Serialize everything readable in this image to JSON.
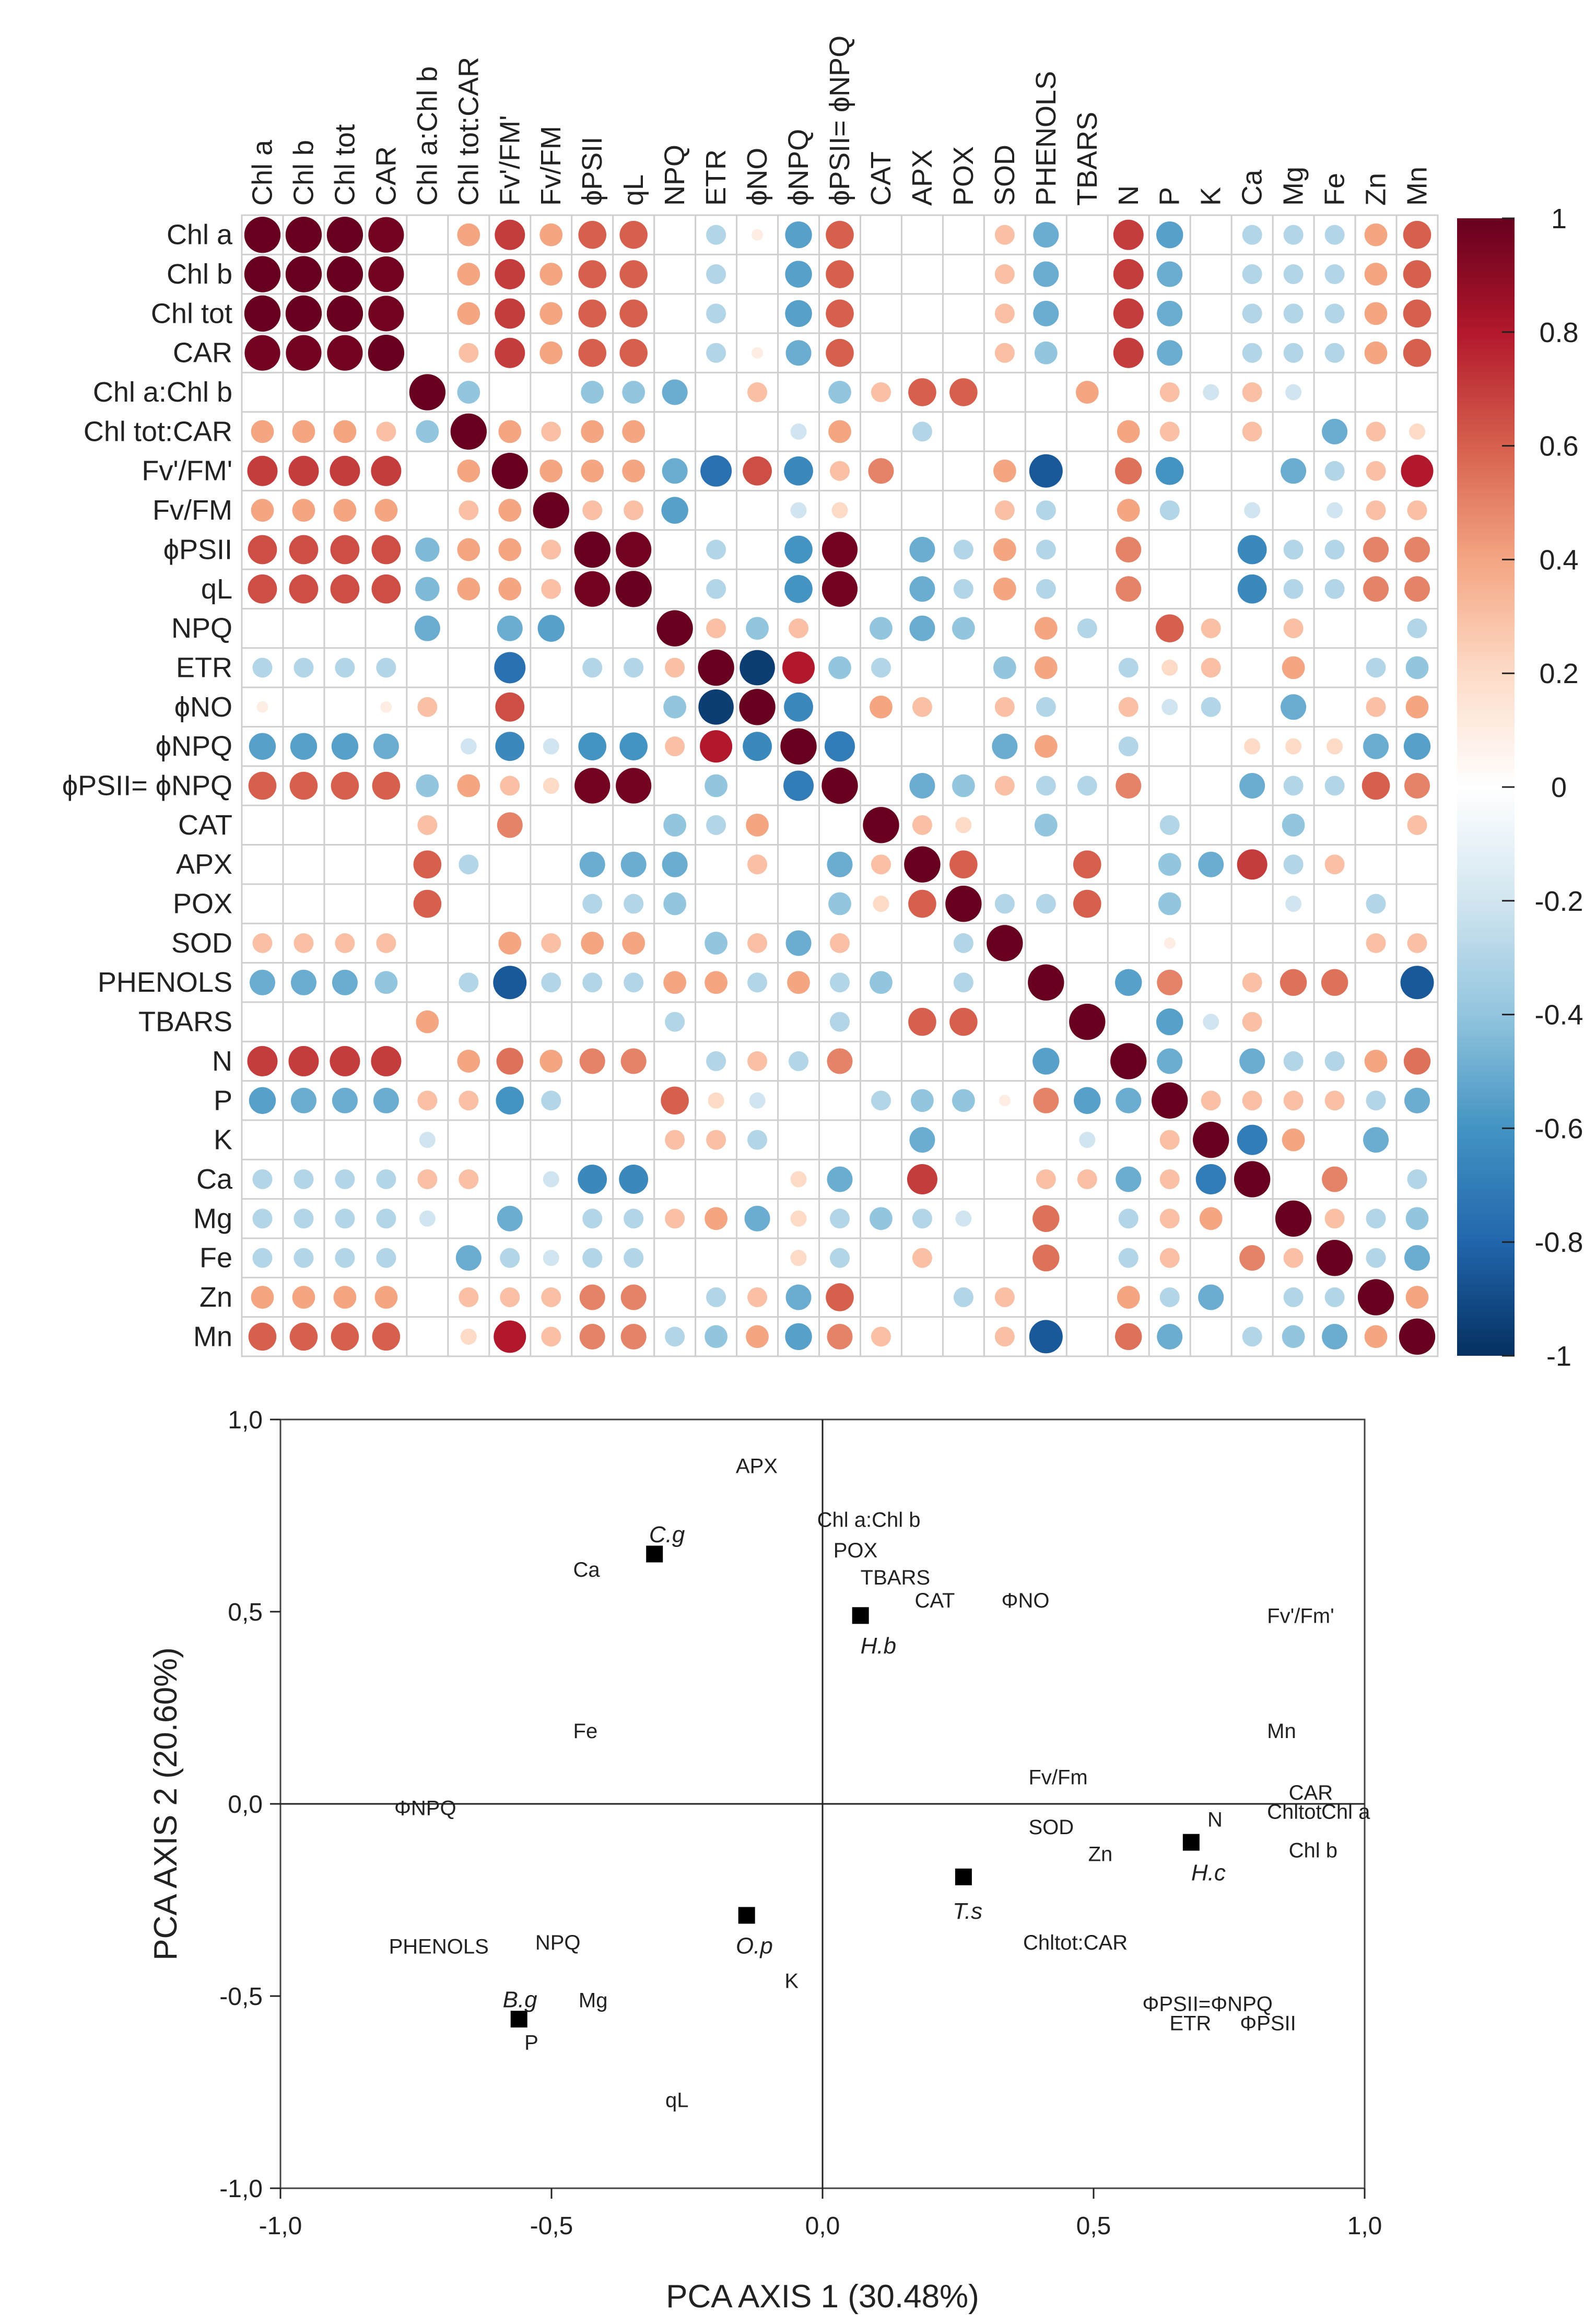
{
  "colors": {
    "scale": [
      "#67001f",
      "#b2182b",
      "#d6604d",
      "#f4a582",
      "#fddbc7",
      "#ffffff",
      "#d1e5f0",
      "#92c5de",
      "#4393c3",
      "#2166ac",
      "#053061"
    ],
    "grid": "#cfcfcf",
    "text": "#222222",
    "treatment_marker": "#000000"
  },
  "chart_data": [
    {
      "type": "heatmap",
      "subtype": "correlation-circles",
      "title": "",
      "variables": [
        "Chl a",
        "Chl b",
        "Chl tot",
        "CAR",
        "Chl a:Chl b",
        "Chl tot:CAR",
        "FV'/FM'",
        "FV/FM",
        "ϕPSII",
        "qL",
        "NPQ",
        "ETR",
        "ϕNO",
        "ϕNPQ",
        "ϕPSII= ϕNPQ",
        "CAT",
        "APX",
        "POX",
        "SOD",
        "PHENOLS",
        "TBARS",
        "N",
        "P",
        "K",
        "Ca",
        "Mg",
        "Fe",
        "Zn",
        "Mn"
      ],
      "row_labels": [
        "Chl a",
        "Chl b",
        "Chl tot",
        "CAR",
        "Chl a:Chl b",
        "Chl tot:CAR",
        "Fv'/FM'",
        "Fv/FM",
        "ϕPSII",
        "qL",
        "NPQ",
        "ETR",
        "ϕNO",
        "ϕNPQ",
        "ϕPSII= ϕNPQ",
        "CAT",
        "APX",
        "POX",
        "SOD",
        "PHENOLS",
        "TBARS",
        "N",
        "P",
        "K",
        "Ca",
        "Mg",
        "Fe",
        "Zn",
        "Mn"
      ],
      "column_labels": [
        "Chl a",
        "Chl b",
        "Chl tot",
        "CAR",
        "Chl a:Chl b",
        "Chl tot:CAR",
        "Fv'/FM'",
        "Fv/FM",
        "ϕPSII",
        "qL",
        "NPQ",
        "ETR",
        "ϕNO",
        "ϕNPQ",
        "ϕPSII= ϕNPQ",
        "CAT",
        "APX",
        "POX",
        "SOD",
        "PHENOLS",
        "TBARS",
        "N",
        "P",
        "K",
        "Ca",
        "Mg",
        "Fe",
        "Zn",
        "Mn"
      ],
      "matrix": [
        [
          1,
          1,
          1,
          0.97,
          0,
          0.4,
          0.7,
          0.4,
          0.6,
          0.6,
          0,
          -0.3,
          0.1,
          -0.55,
          0.6,
          0,
          0,
          0,
          0.3,
          -0.5,
          0,
          0.7,
          -0.55,
          0,
          -0.3,
          -0.3,
          -0.3,
          0.4,
          0.6
        ],
        [
          1,
          1,
          1,
          0.97,
          0,
          0.4,
          0.7,
          0.4,
          0.6,
          0.6,
          0,
          -0.3,
          0,
          -0.55,
          0.6,
          0,
          0,
          0,
          0.3,
          -0.5,
          0,
          0.7,
          -0.5,
          0,
          -0.3,
          -0.3,
          -0.3,
          0.4,
          0.6
        ],
        [
          1,
          1,
          1,
          0.97,
          0,
          0.4,
          0.7,
          0.4,
          0.6,
          0.6,
          0,
          -0.3,
          0,
          -0.55,
          0.6,
          0,
          0,
          0,
          0.3,
          -0.5,
          0,
          0.7,
          -0.5,
          0,
          -0.3,
          -0.3,
          -0.3,
          0.4,
          0.6
        ],
        [
          0.97,
          0.97,
          0.97,
          1,
          0,
          0.3,
          0.7,
          0.4,
          0.6,
          0.6,
          0,
          -0.3,
          0.1,
          -0.5,
          0.6,
          0,
          0,
          0,
          0.3,
          -0.4,
          0,
          0.7,
          -0.5,
          0,
          -0.3,
          -0.3,
          -0.3,
          0.4,
          0.6
        ],
        [
          0,
          0,
          0,
          0,
          1,
          -0.4,
          0,
          0,
          -0.4,
          -0.4,
          -0.5,
          0,
          0.3,
          0,
          -0.4,
          0.3,
          0.6,
          0.6,
          0,
          0,
          0.4,
          0,
          0.3,
          -0.2,
          0.3,
          -0.2,
          0,
          0,
          0
        ],
        [
          0.4,
          0.4,
          0.4,
          0.3,
          -0.4,
          1,
          0.4,
          0.3,
          0.4,
          0.4,
          0,
          0,
          0,
          -0.2,
          0.4,
          0,
          -0.3,
          0,
          0,
          0,
          0,
          0.4,
          0.3,
          0,
          0.3,
          0,
          -0.5,
          0.3,
          0.2
        ],
        [
          0.7,
          0.7,
          0.7,
          0.7,
          0,
          0.4,
          1,
          0.4,
          0.4,
          0.4,
          -0.5,
          -0.75,
          0.65,
          -0.65,
          0.3,
          0.5,
          0,
          0,
          0.4,
          -0.85,
          0,
          0.55,
          -0.6,
          0,
          0,
          -0.5,
          -0.3,
          0.3,
          0.8
        ],
        [
          0.4,
          0.4,
          0.4,
          0.4,
          0,
          0.3,
          0.4,
          1,
          0.3,
          0.3,
          -0.55,
          0,
          0,
          -0.2,
          0.2,
          0,
          0,
          0,
          0.3,
          -0.3,
          0,
          0.4,
          -0.3,
          0,
          -0.2,
          0,
          -0.2,
          0.3,
          0.3
        ],
        [
          0.65,
          0.65,
          0.65,
          0.65,
          -0.45,
          0.4,
          0.4,
          0.3,
          1,
          0.97,
          0,
          -0.3,
          0,
          -0.6,
          0.97,
          0,
          -0.5,
          -0.3,
          0.4,
          -0.3,
          0,
          0.5,
          0,
          0,
          -0.65,
          -0.3,
          -0.3,
          0.5,
          0.5
        ],
        [
          0.65,
          0.65,
          0.65,
          0.65,
          -0.45,
          0.4,
          0.4,
          0.3,
          0.97,
          1,
          0,
          -0.3,
          0,
          -0.6,
          0.97,
          0,
          -0.5,
          -0.3,
          0.4,
          -0.3,
          0,
          0.5,
          0,
          0,
          -0.65,
          -0.3,
          -0.3,
          0.5,
          0.5
        ],
        [
          0,
          0,
          0,
          0,
          -0.5,
          0,
          -0.5,
          -0.55,
          0,
          0,
          1,
          0.3,
          -0.4,
          0.3,
          0,
          -0.4,
          -0.5,
          -0.4,
          0,
          0.4,
          -0.3,
          0,
          0.6,
          0.3,
          0,
          0.3,
          0,
          0,
          -0.3
        ],
        [
          -0.3,
          -0.3,
          -0.3,
          -0.3,
          0,
          0,
          -0.75,
          0,
          -0.3,
          -0.3,
          0.3,
          1,
          -0.95,
          0.8,
          -0.4,
          -0.3,
          0,
          0,
          -0.4,
          0.4,
          0,
          -0.3,
          0.2,
          0.3,
          0,
          0.4,
          0,
          -0.3,
          -0.4
        ],
        [
          0.1,
          0,
          0,
          0.1,
          0.3,
          0,
          0.65,
          0,
          0,
          0,
          -0.4,
          -0.95,
          1,
          -0.65,
          0,
          0.4,
          0.3,
          0,
          0.3,
          -0.3,
          0,
          0.3,
          -0.2,
          -0.3,
          0,
          -0.5,
          0,
          0.3,
          0.4
        ],
        [
          -0.55,
          -0.55,
          -0.55,
          -0.5,
          0,
          -0.2,
          -0.65,
          -0.2,
          -0.6,
          -0.6,
          0.3,
          0.8,
          -0.65,
          1,
          -0.7,
          0,
          0,
          0,
          -0.5,
          0.4,
          0,
          -0.3,
          0,
          0,
          0.2,
          0.2,
          0.2,
          -0.5,
          -0.55
        ],
        [
          0.6,
          0.6,
          0.6,
          0.6,
          -0.4,
          0.4,
          0.3,
          0.2,
          0.97,
          0.97,
          0,
          -0.4,
          0,
          -0.7,
          1,
          0,
          -0.5,
          -0.4,
          0.3,
          -0.3,
          -0.3,
          0.5,
          0,
          0,
          -0.5,
          -0.3,
          -0.3,
          0.6,
          0.5
        ],
        [
          0,
          0,
          0,
          0,
          0.3,
          0,
          0.5,
          0,
          0,
          0,
          -0.4,
          -0.3,
          0.4,
          0,
          0,
          1,
          0.3,
          0.2,
          0,
          -0.4,
          0,
          0,
          -0.3,
          0,
          0,
          -0.4,
          0,
          0,
          0.3
        ],
        [
          0,
          0,
          0,
          0,
          0.6,
          -0.3,
          0,
          0,
          -0.5,
          -0.5,
          -0.5,
          0,
          0.3,
          0,
          -0.5,
          0.3,
          1,
          0.6,
          0,
          0,
          0.6,
          0,
          -0.4,
          -0.5,
          0.7,
          -0.3,
          0.3,
          0,
          0
        ],
        [
          0,
          0,
          0,
          0,
          0.6,
          0,
          0,
          0,
          -0.3,
          -0.3,
          -0.4,
          0,
          0,
          0,
          -0.4,
          0.2,
          0.6,
          1,
          -0.3,
          -0.3,
          0.6,
          0,
          -0.4,
          0,
          0,
          -0.2,
          0,
          -0.3,
          0
        ],
        [
          0.3,
          0.3,
          0.3,
          0.3,
          0,
          0,
          0.4,
          0.3,
          0.4,
          0.4,
          0,
          -0.4,
          0.3,
          -0.5,
          0.3,
          0,
          0,
          -0.3,
          1,
          0,
          0,
          0,
          0.1,
          0,
          0,
          0,
          0,
          0.3,
          0.3
        ],
        [
          -0.5,
          -0.5,
          -0.5,
          -0.4,
          0,
          -0.3,
          -0.85,
          -0.3,
          -0.3,
          -0.3,
          0.4,
          0.4,
          -0.3,
          0.4,
          -0.3,
          -0.4,
          0,
          -0.3,
          0,
          1,
          0,
          -0.55,
          0.5,
          0,
          0.3,
          0.55,
          0.55,
          0,
          -0.85
        ],
        [
          0,
          0,
          0,
          0,
          0.4,
          0,
          0,
          0,
          0,
          0,
          -0.3,
          0,
          0,
          0,
          -0.3,
          0,
          0.6,
          0.6,
          0,
          0,
          1,
          0,
          -0.55,
          -0.2,
          0.3,
          0,
          0,
          0,
          0
        ],
        [
          0.7,
          0.7,
          0.7,
          0.7,
          0,
          0.4,
          0.55,
          0.4,
          0.5,
          0.5,
          0,
          -0.3,
          0.3,
          -0.3,
          0.5,
          0,
          0,
          0,
          0,
          -0.55,
          0,
          1,
          -0.5,
          0,
          -0.5,
          -0.3,
          -0.3,
          0.4,
          0.55
        ],
        [
          -0.55,
          -0.5,
          -0.5,
          -0.5,
          0.3,
          0.3,
          -0.6,
          -0.3,
          0,
          0,
          0.6,
          0.2,
          -0.2,
          0,
          0,
          -0.3,
          -0.4,
          -0.4,
          0.1,
          0.5,
          -0.55,
          -0.5,
          1,
          0.3,
          0.3,
          0.3,
          0.3,
          -0.3,
          -0.5
        ],
        [
          0,
          0,
          0,
          0,
          -0.2,
          0,
          0,
          0,
          0,
          0,
          0.3,
          0.3,
          -0.3,
          0,
          0,
          0,
          -0.5,
          0,
          0,
          0,
          -0.2,
          0,
          0.3,
          1,
          -0.7,
          0.4,
          0,
          -0.5,
          0
        ],
        [
          -0.3,
          -0.3,
          -0.3,
          -0.3,
          0.3,
          0.3,
          0,
          -0.2,
          -0.65,
          -0.65,
          0,
          0,
          0,
          0.2,
          -0.5,
          0,
          0.7,
          0,
          0,
          0.3,
          0.3,
          -0.5,
          0.3,
          -0.7,
          1,
          0,
          0.5,
          0,
          -0.3
        ],
        [
          -0.3,
          -0.3,
          -0.3,
          -0.3,
          -0.2,
          0,
          -0.5,
          0,
          -0.3,
          -0.3,
          0.3,
          0.4,
          -0.5,
          0.2,
          -0.3,
          -0.4,
          -0.3,
          -0.2,
          0,
          0.55,
          0,
          -0.3,
          0.3,
          0.4,
          0,
          1,
          0.3,
          -0.3,
          -0.4
        ],
        [
          -0.3,
          -0.3,
          -0.3,
          -0.3,
          0,
          -0.5,
          -0.3,
          -0.2,
          -0.3,
          -0.3,
          0,
          0,
          0,
          0.2,
          -0.3,
          0,
          0.3,
          0,
          0,
          0.55,
          0,
          -0.3,
          0.3,
          0,
          0.5,
          0.3,
          1,
          -0.3,
          -0.5
        ],
        [
          0.4,
          0.4,
          0.4,
          0.4,
          0,
          0.3,
          0.3,
          0.3,
          0.5,
          0.5,
          0,
          -0.3,
          0.3,
          -0.5,
          0.6,
          0,
          0,
          -0.3,
          0.3,
          0,
          0,
          0.4,
          -0.3,
          -0.5,
          0,
          -0.3,
          -0.3,
          1,
          0.4
        ],
        [
          0.6,
          0.6,
          0.6,
          0.6,
          0,
          0.2,
          0.8,
          0.3,
          0.5,
          0.5,
          -0.3,
          -0.4,
          0.4,
          -0.55,
          0.5,
          0.3,
          0,
          0,
          0.3,
          -0.85,
          0,
          0.55,
          -0.5,
          0,
          -0.3,
          -0.4,
          -0.5,
          0.4,
          1
        ]
      ],
      "colorbar": {
        "range": [
          -1,
          1
        ],
        "ticks": [
          "1",
          "0.8",
          "0.6",
          "0.4",
          "0.2",
          "0",
          "-0.2",
          "-0.4",
          "-0.6",
          "-0.8",
          "-1"
        ]
      }
    },
    {
      "type": "scatter",
      "subtype": "pca-biplot",
      "title": "",
      "xlabel": "PCA AXIS 1 (30.48%)",
      "ylabel": "PCA AXIS 2 (20.60%)",
      "xlim": [
        -1.0,
        1.0
      ],
      "ylim": [
        -1.0,
        1.0
      ],
      "x_ticks": [
        "-1,0",
        "-0,5",
        "0,0",
        "0,5",
        "1,0"
      ],
      "y_ticks": [
        "1,0",
        "0,5",
        "0,0",
        "-0,5",
        "-1,0"
      ],
      "variable_labels": [
        {
          "text": "APX",
          "x": -0.16,
          "y": 0.88
        },
        {
          "text": "Chl a:Chl b",
          "x": -0.01,
          "y": 0.74
        },
        {
          "text": "C.g",
          "x": -0.32,
          "y": 0.7
        },
        {
          "text": "Ca",
          "x": -0.46,
          "y": 0.61
        },
        {
          "text": "POX",
          "x": 0.02,
          "y": 0.66
        },
        {
          "text": "TBARS",
          "x": 0.07,
          "y": 0.59
        },
        {
          "text": "CAT",
          "x": 0.17,
          "y": 0.53
        },
        {
          "text": "ΦNO",
          "x": 0.33,
          "y": 0.53
        },
        {
          "text": "Fv'/Fm'",
          "x": 0.82,
          "y": 0.49
        },
        {
          "text": "H.b",
          "x": 0.07,
          "y": 0.41
        },
        {
          "text": "Fe",
          "x": -0.46,
          "y": 0.19
        },
        {
          "text": "Mn",
          "x": 0.82,
          "y": 0.19
        },
        {
          "text": "Fv/Fm",
          "x": 0.38,
          "y": 0.07
        },
        {
          "text": "ΦNPQ",
          "x": -0.79,
          "y": -0.01
        },
        {
          "text": "CAR",
          "x": 0.86,
          "y": 0.03
        },
        {
          "text": "Chltot",
          "x": 0.82,
          "y": -0.02
        },
        {
          "text": "Chl a",
          "x": 0.92,
          "y": -0.02
        },
        {
          "text": "N",
          "x": 0.71,
          "y": -0.04
        },
        {
          "text": "SOD",
          "x": 0.38,
          "y": -0.06
        },
        {
          "text": "Chl b",
          "x": 0.86,
          "y": -0.12
        },
        {
          "text": "Zn",
          "x": 0.49,
          "y": -0.13
        },
        {
          "text": "H.c",
          "x": 0.68,
          "y": -0.18
        },
        {
          "text": "T.s",
          "x": 0.24,
          "y": -0.28
        },
        {
          "text": "O.p",
          "x": -0.16,
          "y": -0.37
        },
        {
          "text": "PHENOLS",
          "x": -0.8,
          "y": -0.37
        },
        {
          "text": "NPQ",
          "x": -0.53,
          "y": -0.36
        },
        {
          "text": "Chltot:CAR",
          "x": 0.37,
          "y": -0.36
        },
        {
          "text": "K",
          "x": -0.07,
          "y": -0.46
        },
        {
          "text": "B.g",
          "x": -0.59,
          "y": -0.51
        },
        {
          "text": "Mg",
          "x": -0.45,
          "y": -0.51
        },
        {
          "text": "ΦPSII=ΦNPQ",
          "x": 0.59,
          "y": -0.52
        },
        {
          "text": "ETR",
          "x": 0.64,
          "y": -0.57
        },
        {
          "text": "ΦPSII",
          "x": 0.77,
          "y": -0.57
        },
        {
          "text": "P",
          "x": -0.55,
          "y": -0.62
        },
        {
          "text": "qL",
          "x": -0.29,
          "y": -0.77
        }
      ],
      "treatments": [
        {
          "name": "C.g",
          "x": -0.31,
          "y": 0.65
        },
        {
          "name": "H.b",
          "x": 0.07,
          "y": 0.49
        },
        {
          "name": "H.c",
          "x": 0.68,
          "y": -0.1
        },
        {
          "name": "T.s",
          "x": 0.26,
          "y": -0.19
        },
        {
          "name": "O.p",
          "x": -0.14,
          "y": -0.29
        },
        {
          "name": "B.g",
          "x": -0.56,
          "y": -0.56
        }
      ]
    }
  ]
}
